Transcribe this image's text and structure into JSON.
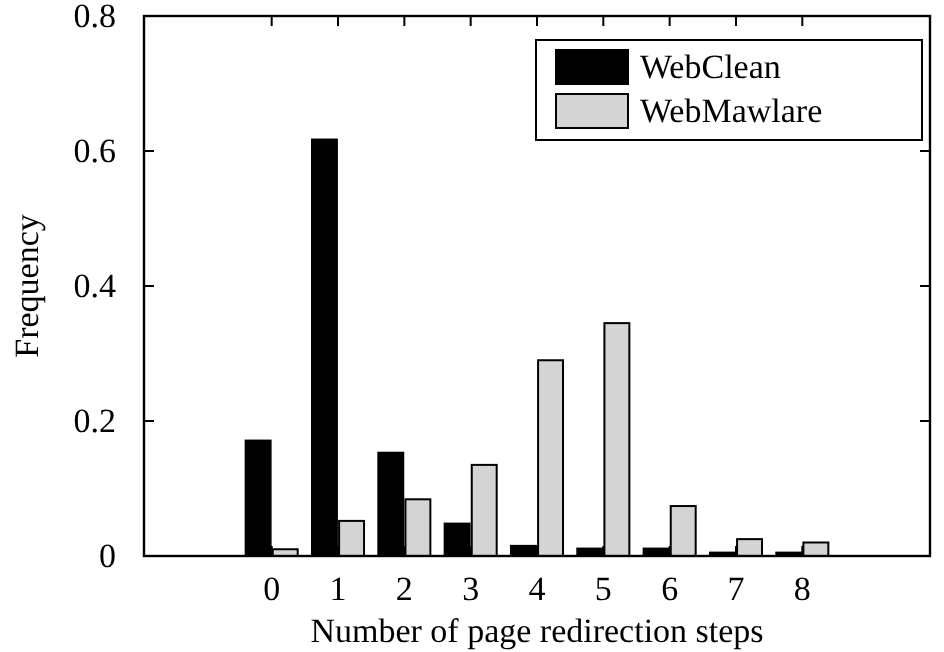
{
  "chart_data": {
    "type": "bar",
    "xlabel": "Number of page redirection steps",
    "ylabel": "Frequency",
    "categories": [
      "0",
      "1",
      "2",
      "3",
      "4",
      "5",
      "6",
      "7",
      "8"
    ],
    "series": [
      {
        "name": "WebClean",
        "color": "#000000",
        "values": [
          0.171,
          0.617,
          0.153,
          0.048,
          0.015,
          0.011,
          0.011,
          0.005,
          0.005
        ]
      },
      {
        "name": "WebMawlare",
        "color": "#d4d4d4",
        "values": [
          0.01,
          0.052,
          0.084,
          0.135,
          0.29,
          0.345,
          0.074,
          0.025,
          0.02
        ]
      }
    ],
    "ylim": [
      0,
      0.8
    ],
    "yticks": [
      0,
      0.2,
      0.4,
      0.6,
      0.8
    ],
    "grid": false,
    "legend": "top right"
  }
}
